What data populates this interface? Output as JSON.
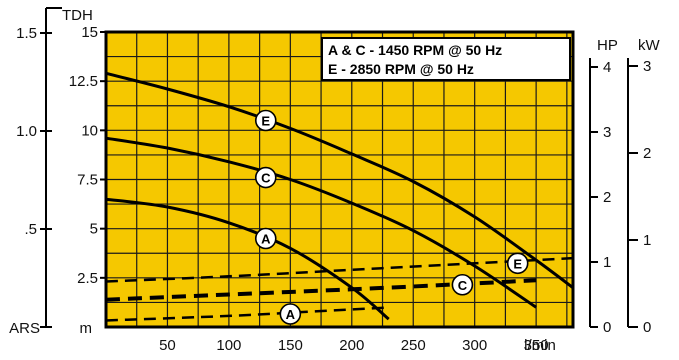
{
  "chart_data": {
    "type": "line",
    "title": "",
    "legend": [
      "A & C - 1450 RPM @ 50 Hz",
      "E - 2850 RPM @ 50 Hz"
    ],
    "x": {
      "unit": "l/min",
      "range": [
        0,
        380
      ],
      "ticks": [
        50,
        100,
        150,
        200,
        250,
        300,
        350
      ],
      "tick_labels": [
        "50",
        "100",
        "150",
        "200",
        "250",
        "300",
        "350"
      ]
    },
    "y_head_m": {
      "top_label": "TDH",
      "unit": "m",
      "range": [
        0,
        15
      ],
      "ticks": [
        2.5,
        5,
        7.5,
        10,
        12.5,
        15
      ],
      "tick_labels": [
        "2.5",
        "5",
        "7.5",
        "10",
        "12.5",
        "15"
      ]
    },
    "y_ars": {
      "bottom_label": "ARS",
      "ticks": [
        0.5,
        1.0,
        1.5
      ],
      "tick_labels": [
        ".5",
        "1.0",
        "1.5"
      ]
    },
    "y_hp": {
      "top_label": "HP",
      "ticks": [
        0,
        1,
        2,
        3,
        4
      ],
      "tick_labels": [
        "0",
        "1",
        "2",
        "3",
        "4"
      ]
    },
    "y_kw": {
      "top_label": "kW",
      "ticks": [
        0,
        1,
        2,
        3
      ],
      "tick_labels": [
        "0",
        "1",
        "2",
        "3"
      ]
    },
    "grid": true,
    "background": "#f5c800",
    "series": [
      {
        "name": "E",
        "kind": "head",
        "style": "solid",
        "x": [
          0,
          50,
          100,
          150,
          200,
          250,
          300,
          350,
          380
        ],
        "y": [
          12.9,
          12.1,
          11.2,
          10.1,
          8.8,
          7.4,
          5.6,
          3.4,
          2.0
        ]
      },
      {
        "name": "C",
        "kind": "head",
        "style": "solid",
        "x": [
          0,
          50,
          100,
          150,
          200,
          250,
          300,
          350
        ],
        "y": [
          9.6,
          9.1,
          8.4,
          7.5,
          6.3,
          4.9,
          3.1,
          1.0
        ]
      },
      {
        "name": "A",
        "kind": "head",
        "style": "solid",
        "x": [
          0,
          50,
          100,
          150,
          200,
          230
        ],
        "y": [
          6.5,
          6.1,
          5.3,
          4.0,
          2.0,
          0.4
        ]
      },
      {
        "name": "E",
        "kind": "power_hp",
        "style": "dashed",
        "x": [
          0,
          100,
          200,
          300,
          380
        ],
        "y": [
          0.7,
          0.78,
          0.88,
          0.98,
          1.06
        ]
      },
      {
        "name": "C",
        "kind": "power_hp",
        "style": "dashed-bold",
        "x": [
          0,
          100,
          200,
          300,
          350
        ],
        "y": [
          0.42,
          0.5,
          0.58,
          0.67,
          0.72
        ]
      },
      {
        "name": "A",
        "kind": "power_hp",
        "style": "dashed",
        "x": [
          0,
          100,
          150,
          200,
          230
        ],
        "y": [
          0.1,
          0.17,
          0.22,
          0.27,
          0.3
        ]
      }
    ],
    "markers": [
      {
        "label": "E",
        "x": 130,
        "y": 10.5
      },
      {
        "label": "C",
        "x": 130,
        "y": 7.6
      },
      {
        "label": "A",
        "x": 130,
        "y": 4.5
      },
      {
        "label": "E",
        "x": 335,
        "hp": 0.98
      },
      {
        "label": "C",
        "x": 290,
        "hp": 0.65
      },
      {
        "label": "A",
        "x": 150,
        "hp": 0.2
      }
    ]
  }
}
